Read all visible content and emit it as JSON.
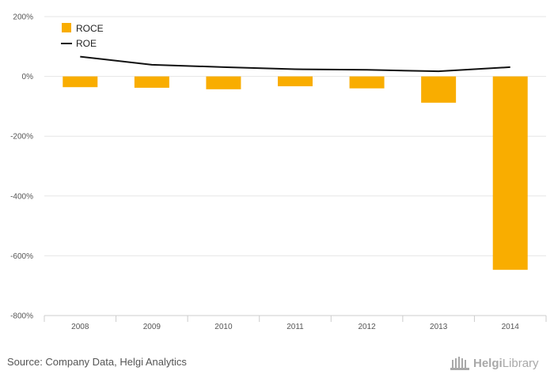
{
  "chart_data": {
    "type": "bar",
    "categories": [
      "2008",
      "2009",
      "2010",
      "2011",
      "2012",
      "2013",
      "2014"
    ],
    "series": [
      {
        "name": "ROCE",
        "type": "bar",
        "color": "#f9ad00",
        "values": [
          -36,
          -38,
          -43,
          -33,
          -40,
          -88,
          -647
        ]
      },
      {
        "name": "ROE",
        "type": "line",
        "color": "#111111",
        "values": [
          66,
          39,
          31,
          24,
          22,
          17,
          31
        ]
      }
    ],
    "ylim": [
      -800,
      200
    ],
    "yticks": [
      200,
      0,
      -200,
      -400,
      -600,
      -800
    ],
    "ytick_labels": [
      "200%",
      "0%",
      "-200%",
      "-400%",
      "-600%",
      "-800%"
    ],
    "grid": true,
    "legend_position": "top-left"
  },
  "source": "Source: Company Data, Helgi Analytics",
  "logo": {
    "word1": "Helgi",
    "word2": "Library",
    "icon": "library-building-icon"
  }
}
